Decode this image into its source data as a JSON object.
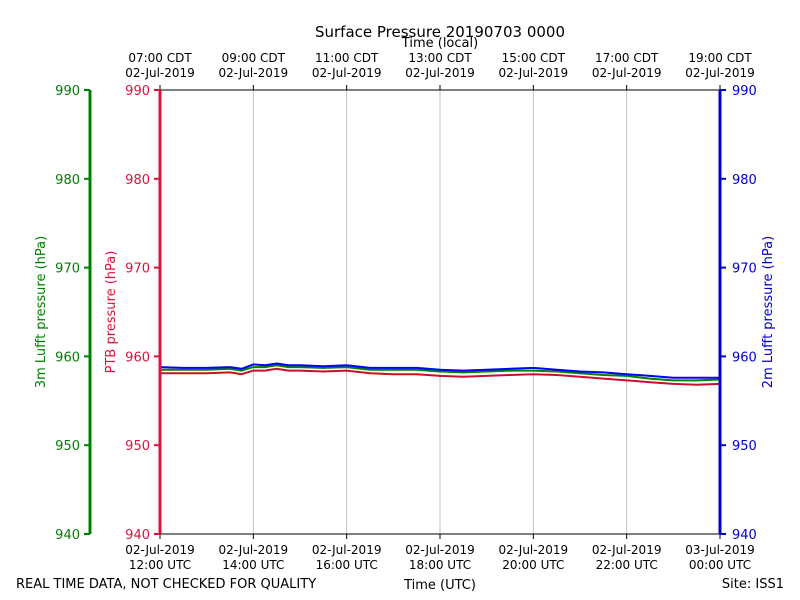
{
  "chart_data": {
    "type": "line",
    "title": "Surface Pressure 20190703 0000",
    "top_axis_label": "Time (local)",
    "bottom_axis_label": "Time (UTC)",
    "footer_left": "REAL TIME DATA, NOT CHECKED FOR QUALITY",
    "footer_right": "Site: ISS1",
    "x_range_hours_utc": [
      12,
      24
    ],
    "bottom_ticks": [
      {
        "hour": 12,
        "date": "02-Jul-2019",
        "time": "12:00 UTC"
      },
      {
        "hour": 14,
        "date": "02-Jul-2019",
        "time": "14:00 UTC"
      },
      {
        "hour": 16,
        "date": "02-Jul-2019",
        "time": "16:00 UTC"
      },
      {
        "hour": 18,
        "date": "02-Jul-2019",
        "time": "18:00 UTC"
      },
      {
        "hour": 20,
        "date": "02-Jul-2019",
        "time": "20:00 UTC"
      },
      {
        "hour": 22,
        "date": "02-Jul-2019",
        "time": "22:00 UTC"
      },
      {
        "hour": 24,
        "date": "03-Jul-2019",
        "time": "00:00 UTC"
      }
    ],
    "top_ticks": [
      {
        "hour": 12,
        "time": "07:00 CDT",
        "date": "02-Jul-2019"
      },
      {
        "hour": 14,
        "time": "09:00 CDT",
        "date": "02-Jul-2019"
      },
      {
        "hour": 16,
        "time": "11:00 CDT",
        "date": "02-Jul-2019"
      },
      {
        "hour": 18,
        "time": "13:00 CDT",
        "date": "02-Jul-2019"
      },
      {
        "hour": 20,
        "time": "15:00 CDT",
        "date": "02-Jul-2019"
      },
      {
        "hour": 22,
        "time": "17:00 CDT",
        "date": "02-Jul-2019"
      },
      {
        "hour": 24,
        "time": "19:00 CDT",
        "date": "02-Jul-2019"
      }
    ],
    "y_axes": [
      {
        "id": "ptb",
        "label": "PTB pressure (hPa)",
        "color": "#dc143c",
        "ylim": [
          940,
          990
        ],
        "ticks": [
          940,
          950,
          960,
          970,
          980,
          990
        ]
      },
      {
        "id": "lufft3m",
        "label": "3m Lufft pressure (hPa)",
        "color": "#008000",
        "ylim": [
          940,
          990
        ],
        "ticks": [
          940,
          950,
          960,
          970,
          980,
          990
        ]
      },
      {
        "id": "lufft2m",
        "label": "2m Lufft pressure (hPa)",
        "color": "#0000cd",
        "ylim": [
          940,
          990
        ],
        "ticks": [
          940,
          950,
          960,
          970,
          980,
          990
        ]
      }
    ],
    "grid": true,
    "series": [
      {
        "axis": "ptb",
        "color": "#c8102e",
        "x": [
          12,
          12.5,
          13,
          13.5,
          13.75,
          14,
          14.25,
          14.5,
          14.75,
          15,
          15.5,
          16,
          16.5,
          17,
          17.5,
          18,
          18.5,
          19,
          19.5,
          20,
          20.5,
          21,
          21.5,
          22,
          22.5,
          23,
          23.5,
          24
        ],
        "y": [
          958.1,
          958.1,
          958.1,
          958.2,
          958.0,
          958.4,
          958.4,
          958.6,
          958.4,
          958.4,
          958.3,
          958.4,
          958.1,
          958.0,
          958.0,
          957.8,
          957.7,
          957.8,
          957.9,
          958.0,
          957.9,
          957.7,
          957.5,
          957.3,
          957.1,
          956.9,
          956.8,
          956.9
        ]
      },
      {
        "axis": "lufft3m",
        "color": "#008000",
        "x": [
          12,
          12.5,
          13,
          13.5,
          13.75,
          14,
          14.25,
          14.5,
          14.75,
          15,
          15.5,
          16,
          16.5,
          17,
          17.5,
          18,
          18.5,
          19,
          19.5,
          20,
          20.5,
          21,
          21.5,
          22,
          22.5,
          23,
          23.5,
          24
        ],
        "y": [
          958.5,
          958.5,
          958.5,
          958.6,
          958.4,
          958.8,
          958.8,
          959.0,
          958.8,
          958.8,
          958.7,
          958.8,
          958.5,
          958.5,
          958.5,
          958.3,
          958.2,
          958.3,
          958.4,
          958.4,
          958.3,
          958.1,
          957.9,
          957.8,
          957.5,
          957.3,
          957.3,
          957.4
        ]
      },
      {
        "axis": "lufft2m",
        "color": "#0000ff",
        "x": [
          12,
          12.5,
          13,
          13.5,
          13.75,
          14,
          14.25,
          14.5,
          14.75,
          15,
          15.5,
          16,
          16.5,
          17,
          17.5,
          18,
          18.5,
          19,
          19.5,
          20,
          20.5,
          21,
          21.5,
          22,
          22.5,
          23,
          23.5,
          24
        ],
        "y": [
          958.8,
          958.7,
          958.7,
          958.8,
          958.6,
          959.1,
          959.0,
          959.2,
          959.0,
          959.0,
          958.9,
          959.0,
          958.7,
          958.7,
          958.7,
          958.5,
          958.4,
          958.5,
          958.6,
          958.7,
          958.5,
          958.3,
          958.2,
          958.0,
          957.8,
          957.6,
          957.6,
          957.6
        ]
      }
    ]
  }
}
